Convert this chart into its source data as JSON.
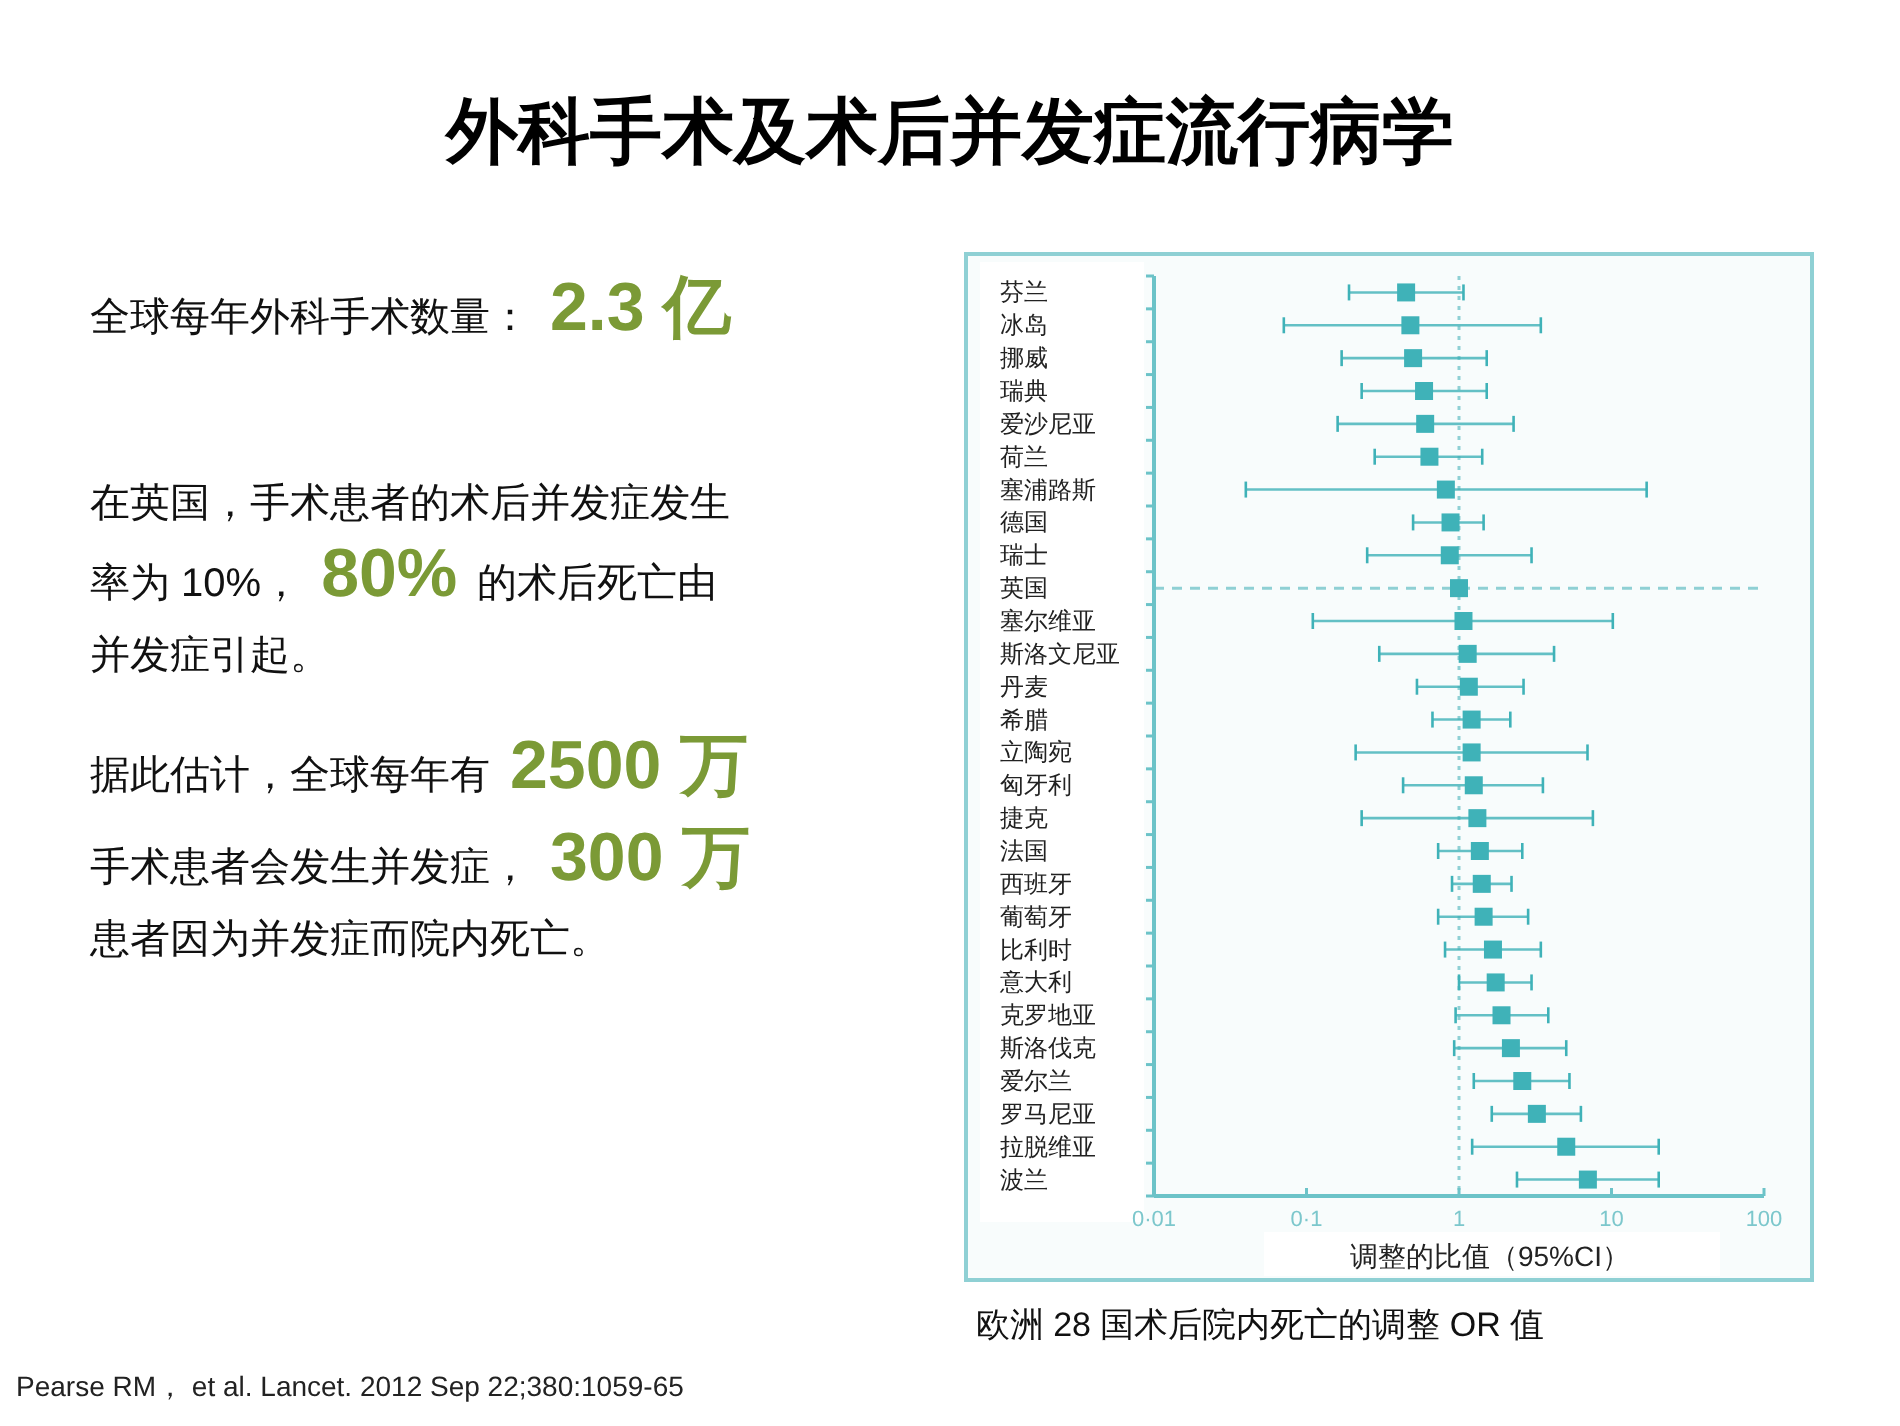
{
  "chart_data": {
    "type": "scatter",
    "orientation": "horizontal",
    "title": "外科手术及术后并发症流行病学",
    "xlabel": "调整的比值（95%CI）",
    "categories": [
      "芬兰",
      "冰岛",
      "挪威",
      "瑞典",
      "爱沙尼亚",
      "荷兰",
      "塞浦路斯",
      "德国",
      "瑞士",
      "英国",
      "塞尔维亚",
      "斯洛文尼亚",
      "丹麦",
      "希腊",
      "立陶宛",
      "匈牙利",
      "捷克",
      "法国",
      "西班牙",
      "葡萄牙",
      "比利时",
      "意大利",
      "克罗地亚",
      "斯洛伐克",
      "爱尔兰",
      "罗马尼亚",
      "拉脱维亚",
      "波兰"
    ],
    "values": [
      0.45,
      0.48,
      0.5,
      0.59,
      0.6,
      0.64,
      0.82,
      0.88,
      0.87,
      1,
      1.07,
      1.14,
      1.16,
      1.21,
      1.21,
      1.25,
      1.32,
      1.37,
      1.41,
      1.45,
      1.67,
      1.74,
      1.9,
      2.19,
      2.6,
      3.24,
      5.05,
      7.0
    ],
    "errors": [
      [
        0.19,
        1.07
      ],
      [
        0.071,
        3.44
      ],
      [
        0.17,
        1.52
      ],
      [
        0.23,
        1.52
      ],
      [
        0.16,
        2.28
      ],
      [
        0.28,
        1.42
      ],
      [
        0.04,
        17
      ],
      [
        0.5,
        1.45
      ],
      [
        0.25,
        2.99
      ],
      null,
      [
        0.11,
        10.2
      ],
      [
        0.3,
        4.2
      ],
      [
        0.53,
        2.65
      ],
      [
        0.67,
        2.17
      ],
      [
        0.21,
        6.96
      ],
      [
        0.43,
        3.55
      ],
      [
        0.23,
        7.55
      ],
      [
        0.73,
        2.6
      ],
      [
        0.9,
        2.21
      ],
      [
        0.73,
        2.84
      ],
      [
        0.81,
        3.44
      ],
      [
        1.0,
        2.99
      ],
      [
        0.95,
        3.85
      ],
      [
        0.93,
        5.05
      ],
      [
        1.25,
        5.3
      ],
      [
        1.64,
        6.3
      ],
      [
        1.22,
        20.4
      ],
      [
        2.4,
        20.4
      ]
    ],
    "color": "#3fb2b8",
    "marker": "square",
    "log": "x",
    "xlim": [
      0.01,
      100
    ],
    "xticks": [
      {
        "value": 0.01,
        "label": "0·01"
      },
      {
        "value": 0.1,
        "label": "0·1"
      },
      1,
      10,
      100
    ],
    "ref_lines": [
      {
        "axis": "x",
        "value": 1,
        "line_style": "dotted",
        "color": "#8fd0d4"
      },
      {
        "axis": "y",
        "value": "英国",
        "line_style": "dashed",
        "color": "#8fd0d4"
      }
    ],
    "annotations": [
      "全球每年外科手术数量：",
      "2.3 亿",
      "在英国，手术患者的术后并发症发生",
      "率为 10%，",
      "80%",
      "的术后死亡由",
      "并发症引起。",
      "据此估计，全球每年有",
      "2500 万",
      "手术患者会发生并发症，",
      "300 万",
      "患者因为并发症而院内死亡。",
      "欧洲 28 国术后院内死亡的调整 OR 值",
      "Pearse RM， et al. Lancet. 2012 Sep 22;380:1059-65"
    ]
  }
}
